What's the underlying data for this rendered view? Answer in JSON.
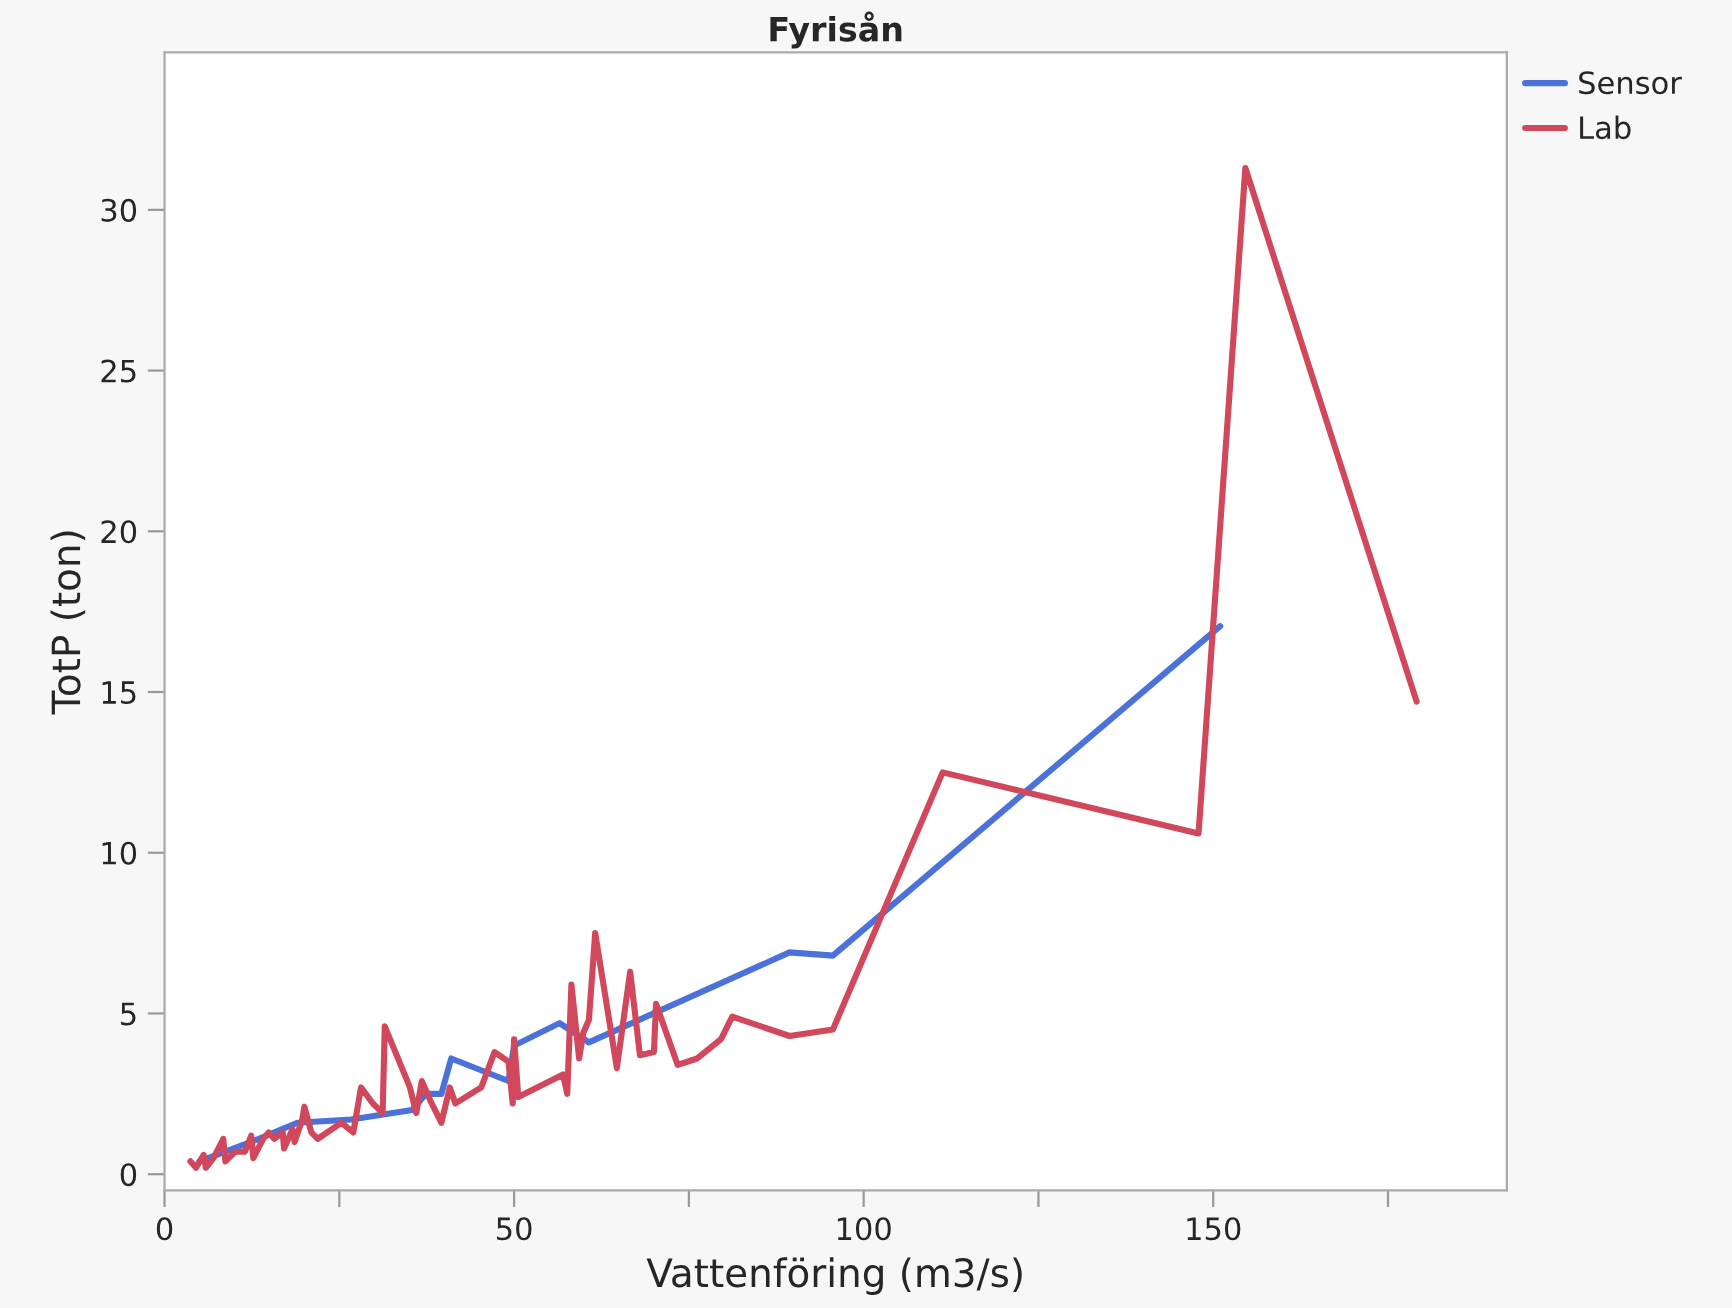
{
  "chart_data": {
    "type": "line",
    "title": "Fyrisån",
    "xlabel": "Vattenföring (m3/s)",
    "ylabel": "TotP (ton)",
    "xlim": [
      0,
      192
    ],
    "ylim": [
      -0.5,
      34.9
    ],
    "xticks": [
      0,
      {
        "value": 25,
        "label": null
      },
      50,
      {
        "value": 75,
        "label": null
      },
      100,
      {
        "value": 125,
        "label": null
      },
      150,
      {
        "value": 175,
        "label": null
      }
    ],
    "yticks": [
      0,
      5,
      10,
      15,
      20,
      25,
      30
    ],
    "grid": false,
    "legend": "top right",
    "marker": "none",
    "line_style": "solid",
    "series": [
      {
        "name": "Sensor",
        "color": "#4a72d9",
        "x": [
          5,
          13.5,
          19,
          26.7,
          35.4,
          37.4,
          39.6,
          41,
          49.2,
          50,
          56.5,
          60.7,
          89.4,
          95.6,
          151
        ],
        "values": [
          0.4,
          1.1,
          1.6,
          1.7,
          2.0,
          2.5,
          2.5,
          3.6,
          2.9,
          4.0,
          4.7,
          4.1,
          6.9,
          6.8,
          17.05
        ]
      },
      {
        "name": "Lab",
        "color": "#d1475b",
        "x": [
          3.7,
          4.5,
          5.6,
          5.9,
          7,
          8.4,
          8.7,
          10.1,
          11.5,
          12.4,
          12.7,
          14.1,
          14.9,
          15.7,
          16.9,
          17.1,
          18.3,
          18.6,
          19.7,
          20,
          21,
          21.9,
          25.3,
          27,
          28.1,
          29.8,
          31.2,
          31.5,
          35.1,
          36,
          36.8,
          38,
          39.6,
          40.8,
          41.6,
          45.3,
          47.2,
          49.2,
          49.8,
          50,
          50.6,
          57,
          57.6,
          58.2,
          59.3,
          59.9,
          60.7,
          61.6,
          64.7,
          66.6,
          68,
          70,
          70.3,
          73.4,
          76.2,
          79.6,
          81.2,
          89.4,
          95.6,
          111.3,
          147.9,
          154.6,
          179.1
        ],
        "values": [
          0.4,
          0.2,
          0.6,
          0.2,
          0.5,
          1.1,
          0.4,
          0.7,
          0.7,
          1.2,
          0.5,
          1.1,
          1.3,
          1.1,
          1.3,
          0.8,
          1.4,
          1.0,
          1.7,
          2.1,
          1.3,
          1.1,
          1.6,
          1.3,
          2.7,
          2.2,
          1.9,
          4.6,
          2.7,
          1.9,
          2.9,
          2.3,
          1.6,
          2.7,
          2.2,
          2.7,
          3.8,
          3.5,
          2.2,
          4.2,
          2.4,
          3.1,
          2.5,
          5.9,
          3.6,
          4.4,
          4.8,
          7.5,
          3.3,
          6.3,
          3.7,
          3.8,
          5.3,
          3.4,
          3.6,
          4.2,
          4.9,
          4.3,
          4.5,
          12.5,
          10.6,
          31.3,
          14.7
        ]
      }
    ]
  }
}
